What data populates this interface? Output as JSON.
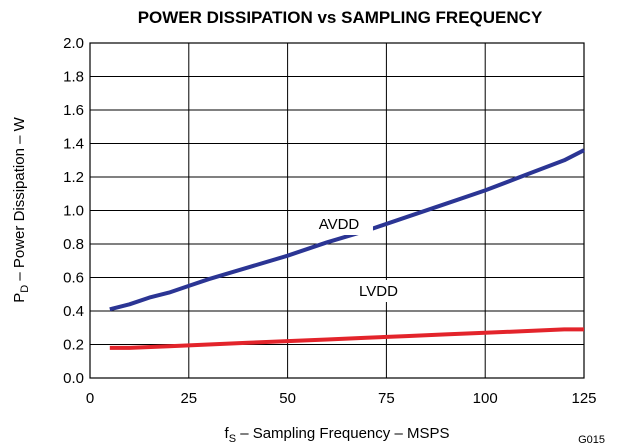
{
  "chart_data": {
    "type": "line",
    "title": "POWER DISSIPATION vs SAMPLING FREQUENCY",
    "xlabel": {
      "main": "f",
      "sub": "S",
      "rest": " – Sampling Frequency – MSPS"
    },
    "ylabel": {
      "main": "P",
      "sub": "D",
      "rest": " – Power Dissipation – W"
    },
    "xlim": [
      0,
      125
    ],
    "ylim": [
      0,
      2.0
    ],
    "xticks": [
      "0",
      "25",
      "50",
      "75",
      "100",
      "125"
    ],
    "yticks": [
      "0.0",
      "0.2",
      "0.4",
      "0.6",
      "0.8",
      "1.0",
      "1.2",
      "1.4",
      "1.6",
      "1.8",
      "2.0"
    ],
    "grid": true,
    "figure_id": "G015",
    "series": [
      {
        "name": "AVDD",
        "color": "#2b3594",
        "x": [
          5,
          10,
          15,
          20,
          25,
          30,
          40,
          50,
          60,
          70,
          80,
          90,
          100,
          110,
          120,
          125
        ],
        "y": [
          0.41,
          0.44,
          0.48,
          0.51,
          0.55,
          0.59,
          0.66,
          0.73,
          0.81,
          0.88,
          0.96,
          1.04,
          1.12,
          1.21,
          1.3,
          1.36
        ]
      },
      {
        "name": "LVDD",
        "color": "#e3242b",
        "x": [
          5,
          10,
          20,
          30,
          40,
          50,
          60,
          70,
          80,
          90,
          100,
          110,
          120,
          125
        ],
        "y": [
          0.18,
          0.18,
          0.19,
          0.2,
          0.21,
          0.22,
          0.23,
          0.24,
          0.25,
          0.26,
          0.27,
          0.28,
          0.29,
          0.29
        ]
      }
    ]
  }
}
